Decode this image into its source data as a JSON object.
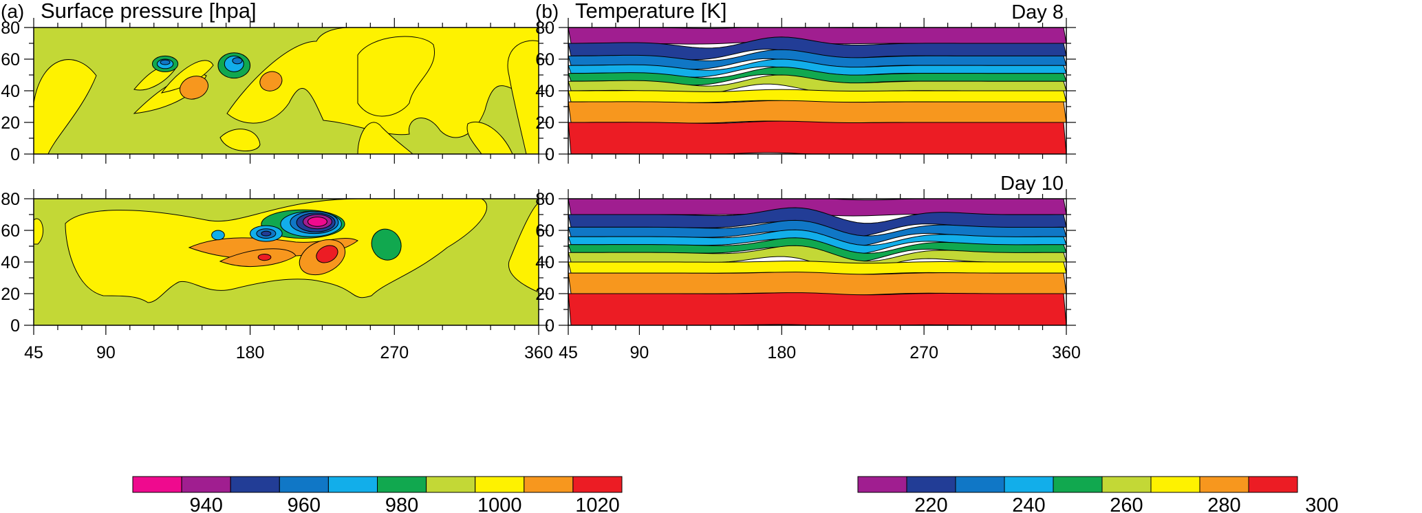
{
  "chart_data": [
    {
      "type": "heatmap",
      "panel_label": "(a)",
      "title": "Surface pressure [hpa]",
      "day_labels": [
        "",
        ""
      ],
      "x_ticks": [
        "45",
        "90",
        "180",
        "270",
        "360"
      ],
      "y_ticks": [
        "80",
        "60",
        "40",
        "20",
        "0"
      ],
      "xlim": [
        45,
        360
      ],
      "ylim": [
        0,
        80
      ],
      "colorbar": {
        "labels": [
          "940",
          "960",
          "980",
          "1000",
          "1020"
        ],
        "colors": [
          "#ef0a8e",
          "#a01e90",
          "#223d96",
          "#1077c6",
          "#12aeea",
          "#11a84f",
          "#c3d836",
          "#fef200",
          "#f7971e",
          "#ec1c24"
        ]
      },
      "field": {
        "background_value": 1000,
        "background_color": "#c3d836",
        "note": "contoured surface pressure; low-pressure cyclones deepen near lon 180-240, lat 55-70 between Day 8 and Day 10"
      }
    },
    {
      "type": "heatmap",
      "panel_label": "(b)",
      "title": "Temperature [K]",
      "day_labels": [
        "Day 8",
        "Day 10"
      ],
      "x_ticks": [
        "45",
        "90",
        "180",
        "270",
        "360"
      ],
      "y_ticks": [
        "80",
        "60",
        "40",
        "20",
        "0"
      ],
      "xlim": [
        45,
        360
      ],
      "ylim": [
        0,
        80
      ],
      "colorbar": {
        "labels": [
          "220",
          "240",
          "260",
          "280",
          "300"
        ],
        "colors": [
          "#a01e90",
          "#223d96",
          "#1077c6",
          "#12aeea",
          "#11a84f",
          "#c3d836",
          "#fef200",
          "#f7971e",
          "#ec1c24"
        ]
      },
      "bands": [
        {
          "lat_min": 70,
          "lat_max": 80,
          "color": "#a01e90"
        },
        {
          "lat_min": 62,
          "lat_max": 70,
          "color": "#223d96"
        },
        {
          "lat_min": 56,
          "lat_max": 62,
          "color": "#1077c6"
        },
        {
          "lat_min": 51,
          "lat_max": 56,
          "color": "#12aeea"
        },
        {
          "lat_min": 46,
          "lat_max": 51,
          "color": "#11a84f"
        },
        {
          "lat_min": 40,
          "lat_max": 46,
          "color": "#c3d836"
        },
        {
          "lat_min": 33,
          "lat_max": 40,
          "color": "#fef200"
        },
        {
          "lat_min": 20,
          "lat_max": 33,
          "color": "#f7971e"
        },
        {
          "lat_min": 0,
          "lat_max": 20,
          "color": "#ec1c24"
        }
      ]
    }
  ]
}
